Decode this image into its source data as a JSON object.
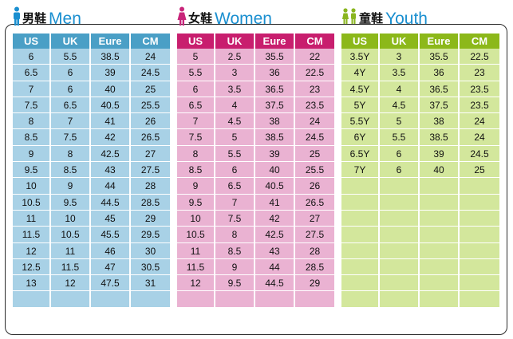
{
  "colors": {
    "men_accent": "#1a8fd0",
    "women_accent": "#c8257a",
    "youth_accent": "#8ab51f"
  },
  "men": {
    "zh": "男鞋",
    "en": "Men",
    "icon": "man-icon",
    "headers": [
      "US",
      "UK",
      "Eure",
      "CM"
    ],
    "rows": [
      [
        "6",
        "5.5",
        "38.5",
        "24"
      ],
      [
        "6.5",
        "6",
        "39",
        "24.5"
      ],
      [
        "7",
        "6",
        "40",
        "25"
      ],
      [
        "7.5",
        "6.5",
        "40.5",
        "25.5"
      ],
      [
        "8",
        "7",
        "41",
        "26"
      ],
      [
        "8.5",
        "7.5",
        "42",
        "26.5"
      ],
      [
        "9",
        "8",
        "42.5",
        "27"
      ],
      [
        "9.5",
        "8.5",
        "43",
        "27.5"
      ],
      [
        "10",
        "9",
        "44",
        "28"
      ],
      [
        "10.5",
        "9.5",
        "44.5",
        "28.5"
      ],
      [
        "11",
        "10",
        "45",
        "29"
      ],
      [
        "11.5",
        "10.5",
        "45.5",
        "29.5"
      ],
      [
        "12",
        "11",
        "46",
        "30"
      ],
      [
        "12.5",
        "11.5",
        "47",
        "30.5"
      ],
      [
        "13",
        "12",
        "47.5",
        "31"
      ],
      [
        "",
        "",
        "",
        ""
      ]
    ]
  },
  "women": {
    "zh": "女鞋",
    "en": "Women",
    "icon": "woman-icon",
    "headers": [
      "US",
      "UK",
      "Eure",
      "CM"
    ],
    "rows": [
      [
        "5",
        "2.5",
        "35.5",
        "22"
      ],
      [
        "5.5",
        "3",
        "36",
        "22.5"
      ],
      [
        "6",
        "3.5",
        "36.5",
        "23"
      ],
      [
        "6.5",
        "4",
        "37.5",
        "23.5"
      ],
      [
        "7",
        "4.5",
        "38",
        "24"
      ],
      [
        "7.5",
        "5",
        "38.5",
        "24.5"
      ],
      [
        "8",
        "5.5",
        "39",
        "25"
      ],
      [
        "8.5",
        "6",
        "40",
        "25.5"
      ],
      [
        "9",
        "6.5",
        "40.5",
        "26"
      ],
      [
        "9.5",
        "7",
        "41",
        "26.5"
      ],
      [
        "10",
        "7.5",
        "42",
        "27"
      ],
      [
        "10.5",
        "8",
        "42.5",
        "27.5"
      ],
      [
        "11",
        "8.5",
        "43",
        "28"
      ],
      [
        "11.5",
        "9",
        "44",
        "28.5"
      ],
      [
        "12",
        "9.5",
        "44.5",
        "29"
      ],
      [
        "",
        "",
        "",
        ""
      ]
    ]
  },
  "youth": {
    "zh": "童鞋",
    "en": "Youth",
    "icon": "children-icon",
    "headers": [
      "US",
      "UK",
      "Eure",
      "CM"
    ],
    "rows": [
      [
        "3.5Y",
        "3",
        "35.5",
        "22.5"
      ],
      [
        "4Y",
        "3.5",
        "36",
        "23"
      ],
      [
        "4.5Y",
        "4",
        "36.5",
        "23.5"
      ],
      [
        "5Y",
        "4.5",
        "37.5",
        "23.5"
      ],
      [
        "5.5Y",
        "5",
        "38",
        "24"
      ],
      [
        "6Y",
        "5.5",
        "38.5",
        "24"
      ],
      [
        "6.5Y",
        "6",
        "39",
        "24.5"
      ],
      [
        "7Y",
        "6",
        "40",
        "25"
      ],
      [
        "",
        "",
        "",
        ""
      ],
      [
        "",
        "",
        "",
        ""
      ],
      [
        "",
        "",
        "",
        ""
      ],
      [
        "",
        "",
        "",
        ""
      ],
      [
        "",
        "",
        "",
        ""
      ],
      [
        "",
        "",
        "",
        ""
      ],
      [
        "",
        "",
        "",
        ""
      ],
      [
        "",
        "",
        "",
        ""
      ]
    ]
  }
}
